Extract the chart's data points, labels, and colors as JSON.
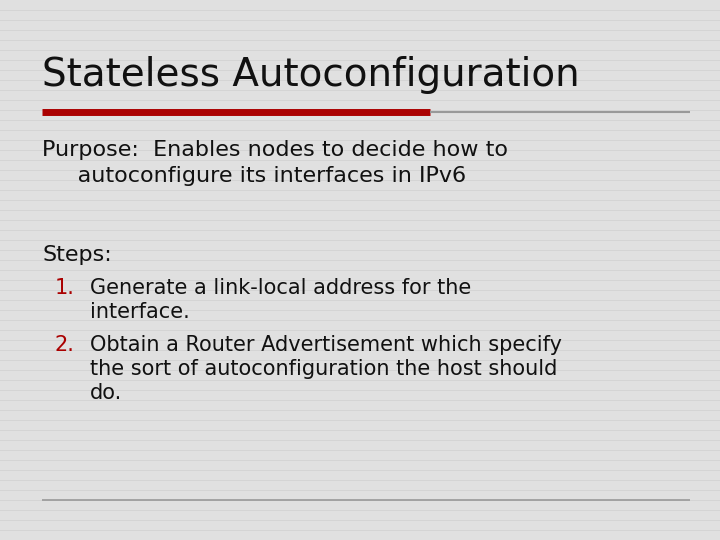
{
  "title": "Stateless Autoconfiguration",
  "title_fontsize": 28,
  "title_color": "#111111",
  "background_color": "#e0e0e0",
  "stripe_color": "#cccccc",
  "red_line_color": "#aa0000",
  "gray_line_color": "#999999",
  "purpose_line1": "Purpose:  Enables nodes to decide how to",
  "purpose_line2": "     autoconfigure its interfaces in IPv6",
  "purpose_fontsize": 16,
  "purpose_color": "#111111",
  "steps_label": "Steps:",
  "steps_fontsize": 16,
  "steps_color": "#111111",
  "item1_num": "1.",
  "item1_num_color": "#aa0000",
  "item1_line1": "Generate a link-local address for the",
  "item1_line2": "interface.",
  "item1_fontsize": 15,
  "item1_color": "#111111",
  "item2_num": "2.",
  "item2_num_color": "#aa0000",
  "item2_line1": "Obtain a Router Advertisement which specify",
  "item2_line2": "the sort of autoconfiguration the host should",
  "item2_line3": "do.",
  "item2_fontsize": 15,
  "item2_color": "#111111",
  "fig_width": 7.2,
  "fig_height": 5.4,
  "dpi": 100
}
